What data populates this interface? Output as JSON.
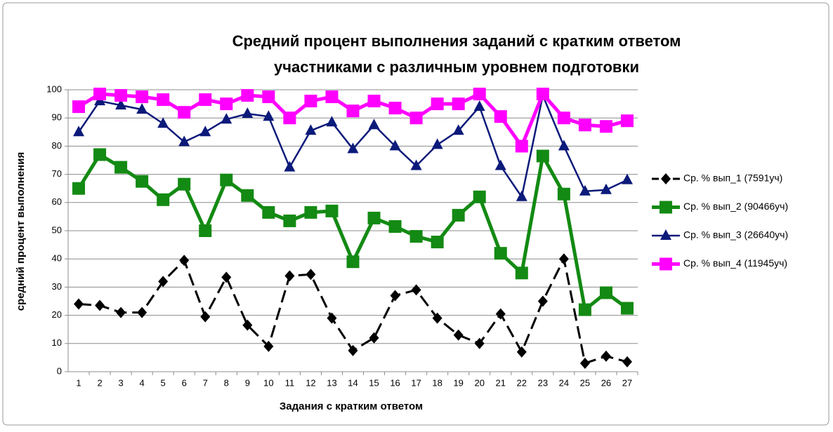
{
  "chart_data": {
    "type": "line",
    "title": [
      "Средний процент выполнения заданий с кратким ответом",
      "участниками с различным уровнем подготовки"
    ],
    "x_label": "Задания с кратким ответом",
    "y_label": "средний процент выполнения",
    "categories": [
      "1",
      "2",
      "3",
      "4",
      "5",
      "6",
      "7",
      "8",
      "9",
      "10",
      "11",
      "12",
      "13",
      "14",
      "15",
      "16",
      "17",
      "18",
      "19",
      "20",
      "21",
      "22",
      "23",
      "24",
      "25",
      "26",
      "27"
    ],
    "ylim": [
      0,
      100
    ],
    "yticks": [
      0,
      10,
      20,
      30,
      40,
      50,
      60,
      70,
      80,
      90,
      100
    ],
    "grid": true,
    "legend": "right",
    "series": [
      {
        "name": "Ср. % вып_1 (7591уч)",
        "color": "#000000",
        "marker": "diamond",
        "dashed": true,
        "values": [
          24,
          23.5,
          21,
          21,
          32,
          39.5,
          19.5,
          33.5,
          16.5,
          9,
          34,
          34.5,
          19,
          7.5,
          12,
          27,
          29,
          19,
          13,
          10,
          20.5,
          7,
          25,
          40,
          3,
          5.5,
          3.5
        ]
      },
      {
        "name": "Ср. % вып_2 (90466уч)",
        "color": "#138a13",
        "marker": "square",
        "dashed": false,
        "values": [
          65,
          77,
          72.5,
          67.5,
          61,
          66.5,
          50,
          68,
          62.5,
          56.5,
          53.5,
          56.5,
          57,
          39,
          54.5,
          51.5,
          48,
          46,
          55.5,
          62,
          42,
          35,
          76.5,
          63,
          22,
          28,
          22.5
        ]
      },
      {
        "name": "Ср. % вып_3 (26640уч)",
        "color": "#0c1a7a",
        "marker": "triangle",
        "dashed": false,
        "values": [
          85,
          96,
          94.5,
          93,
          88,
          81.5,
          85,
          89.5,
          91.5,
          90.5,
          72.5,
          85.5,
          88.5,
          79,
          87.5,
          80,
          73,
          80.5,
          85.5,
          94,
          73,
          62,
          98,
          80,
          64,
          64.5,
          68
        ]
      },
      {
        "name": "Ср. % вып_4 (11945уч)",
        "color": "#ff00ff",
        "marker": "square",
        "dashed": false,
        "values": [
          94,
          98.5,
          98,
          97.5,
          96.5,
          92,
          96.5,
          95,
          98,
          97.5,
          90,
          96,
          97.5,
          92.5,
          96,
          93.5,
          90,
          95,
          95,
          98.5,
          90.5,
          80,
          98.5,
          90,
          87.5,
          87,
          89
        ]
      }
    ]
  }
}
